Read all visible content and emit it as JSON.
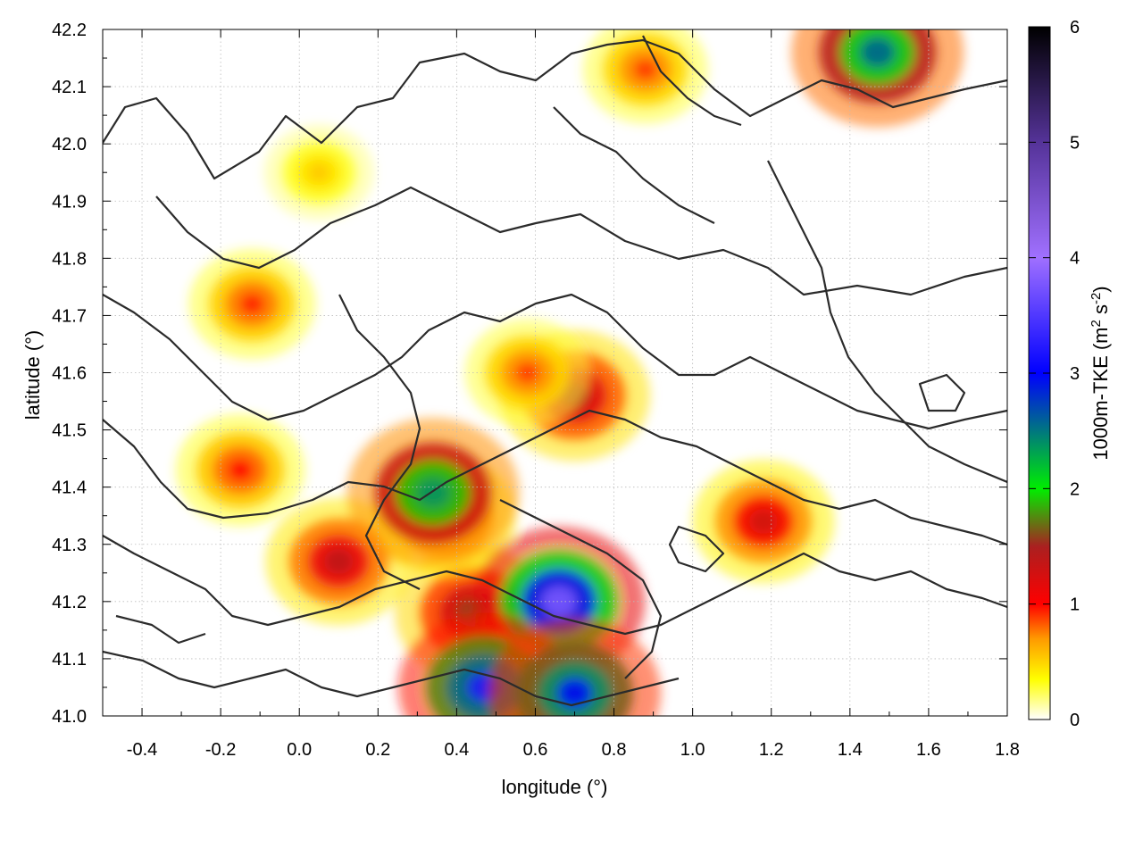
{
  "chart_data": {
    "type": "heatmap",
    "title": "",
    "xlabel": "longitude (°)",
    "ylabel": "latitude (°)",
    "colorbar_label": "1000m-TKE (m² s⁻²)",
    "colorbar_label_parts": {
      "main": "1000m-TKE (m",
      "sup1": "2",
      "mid": " s",
      "sup2": "-2",
      "end": ")"
    },
    "xlim": [
      -0.5,
      1.8
    ],
    "ylim": [
      41.0,
      42.2
    ],
    "colorbar_range": [
      0,
      6
    ],
    "x_ticks": [
      "-0.4",
      "-0.2",
      "0.0",
      "0.2",
      "0.4",
      "0.6",
      "0.8",
      "1.0",
      "1.2",
      "1.4",
      "1.6",
      "1.8"
    ],
    "x_tick_values": [
      -0.4,
      -0.2,
      0.0,
      0.2,
      0.4,
      0.6,
      0.8,
      1.0,
      1.2,
      1.4,
      1.6,
      1.8
    ],
    "y_ticks": [
      "41.0",
      "41.1",
      "41.2",
      "41.3",
      "41.4",
      "41.5",
      "41.6",
      "41.7",
      "41.8",
      "41.9",
      "42.0",
      "42.1",
      "42.2"
    ],
    "y_tick_values": [
      41.0,
      41.1,
      41.2,
      41.3,
      41.4,
      41.5,
      41.6,
      41.7,
      41.8,
      41.9,
      42.0,
      42.1,
      42.2
    ],
    "colorbar_ticks": [
      "0",
      "1",
      "2",
      "3",
      "4",
      "5",
      "6"
    ],
    "colorbar_tick_values": [
      0,
      1,
      2,
      3,
      4,
      5,
      6
    ],
    "grid": true,
    "colorbar_position": "right",
    "colormap": [
      {
        "v": 0.0,
        "color": "#ffffff"
      },
      {
        "v": 0.35,
        "color": "#ffff00"
      },
      {
        "v": 0.7,
        "color": "#ff9900"
      },
      {
        "v": 1.0,
        "color": "#ff0000"
      },
      {
        "v": 1.5,
        "color": "#aa2020"
      },
      {
        "v": 2.0,
        "color": "#00ee00"
      },
      {
        "v": 3.0,
        "color": "#0000ff"
      },
      {
        "v": 4.0,
        "color": "#a070ff"
      },
      {
        "v": 5.0,
        "color": "#553399"
      },
      {
        "v": 6.0,
        "color": "#000000"
      }
    ],
    "hotspots": [
      {
        "lon": 0.44,
        "lat": 41.18,
        "tke": 1.6
      },
      {
        "lon": 0.1,
        "lat": 41.27,
        "tke": 1.4
      },
      {
        "lon": 0.37,
        "lat": 41.35,
        "tke": 1.3
      },
      {
        "lon": 0.66,
        "lat": 41.2,
        "tke": 3.8
      },
      {
        "lon": 0.47,
        "lat": 41.05,
        "tke": 3.2
      },
      {
        "lon": 0.7,
        "lat": 41.04,
        "tke": 3.0
      },
      {
        "lon": 0.34,
        "lat": 41.39,
        "tke": 2.4
      },
      {
        "lon": 0.7,
        "lat": 41.56,
        "tke": 1.5
      },
      {
        "lon": -0.15,
        "lat": 41.43,
        "tke": 1.0
      },
      {
        "lon": -0.12,
        "lat": 41.72,
        "tke": 0.95
      },
      {
        "lon": 0.88,
        "lat": 42.13,
        "tke": 0.9
      },
      {
        "lon": 1.47,
        "lat": 42.16,
        "tke": 2.6
      },
      {
        "lon": 0.05,
        "lat": 41.95,
        "tke": 0.55
      },
      {
        "lon": 1.18,
        "lat": 41.34,
        "tke": 1.3
      },
      {
        "lon": 0.58,
        "lat": 41.6,
        "tke": 0.9
      }
    ]
  }
}
